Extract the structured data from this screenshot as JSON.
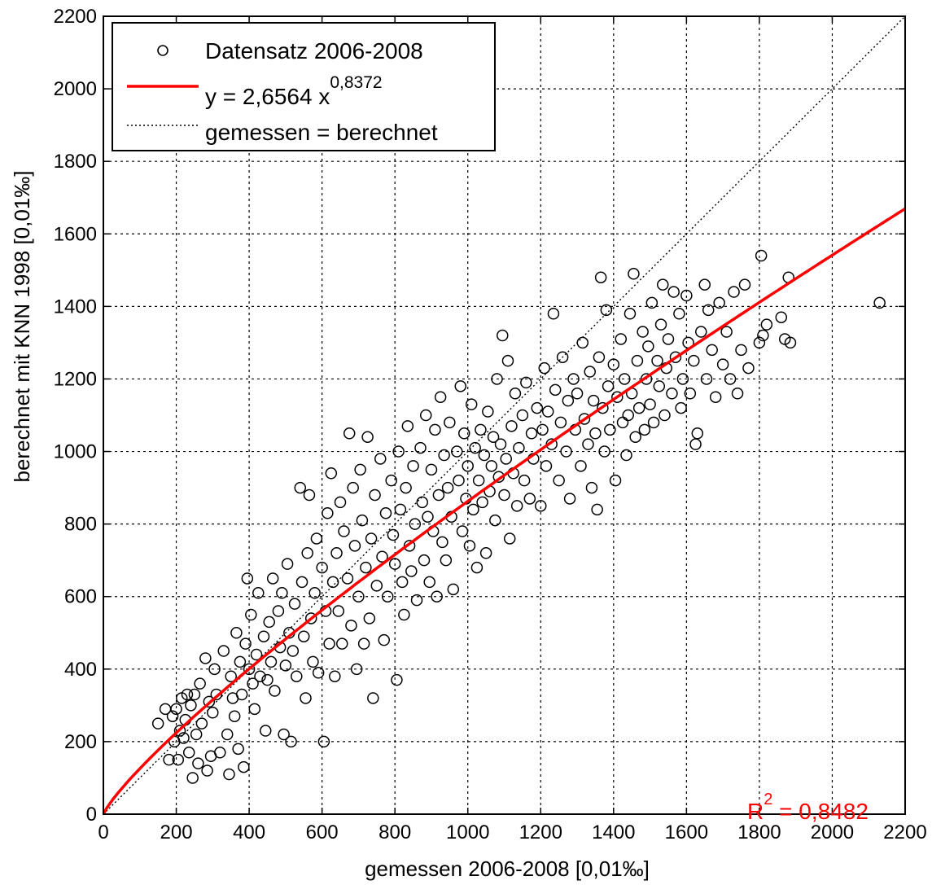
{
  "chart_data": {
    "type": "scatter",
    "xlabel": "gemessen 2006-2008 [0,01‰]",
    "ylabel": "berechnet mit KNN 1998 [0,01‰]",
    "xlim": [
      0,
      2200
    ],
    "ylim": [
      0,
      2200
    ],
    "xticks": [
      "0",
      "200",
      "400",
      "600",
      "800",
      "1000",
      "1200",
      "1400",
      "1600",
      "1800",
      "2000",
      "2200"
    ],
    "yticks": [
      "0",
      "200",
      "400",
      "600",
      "800",
      "1000",
      "1200",
      "1400",
      "1600",
      "1800",
      "2000",
      "2200"
    ],
    "grid": true,
    "legend_position": "top-left",
    "legend": [
      {
        "label": "Datensatz 2006-2008",
        "marker": "circle",
        "color": "#000000"
      },
      {
        "label_base": "y = 2,6564 x",
        "label_exp": "0,8372",
        "style": "solid",
        "color": "#ff0000"
      },
      {
        "label": "gemessen = berechnet",
        "style": "dotted",
        "color": "#000000"
      }
    ],
    "fit": {
      "a": 2.6564,
      "b": 0.8372,
      "color": "#ff0000"
    },
    "r2": {
      "base": "R",
      "exp": "2",
      "value": " = 0,8482",
      "color": "#ff0000"
    },
    "series": [
      {
        "name": "Datensatz 2006-2008",
        "marker": "circle",
        "points": [
          [
            150,
            250
          ],
          [
            170,
            290
          ],
          [
            180,
            150
          ],
          [
            190,
            270
          ],
          [
            195,
            200
          ],
          [
            200,
            290
          ],
          [
            205,
            150
          ],
          [
            210,
            230
          ],
          [
            215,
            320
          ],
          [
            220,
            210
          ],
          [
            225,
            260
          ],
          [
            230,
            330
          ],
          [
            235,
            170
          ],
          [
            240,
            300
          ],
          [
            245,
            100
          ],
          [
            250,
            330
          ],
          [
            255,
            220
          ],
          [
            260,
            140
          ],
          [
            265,
            360
          ],
          [
            270,
            250
          ],
          [
            280,
            430
          ],
          [
            285,
            120
          ],
          [
            290,
            310
          ],
          [
            295,
            160
          ],
          [
            300,
            280
          ],
          [
            305,
            400
          ],
          [
            310,
            330
          ],
          [
            320,
            170
          ],
          [
            330,
            450
          ],
          [
            340,
            220
          ],
          [
            345,
            110
          ],
          [
            350,
            380
          ],
          [
            355,
            320
          ],
          [
            360,
            270
          ],
          [
            365,
            500
          ],
          [
            370,
            180
          ],
          [
            375,
            420
          ],
          [
            380,
            330
          ],
          [
            385,
            130
          ],
          [
            390,
            470
          ],
          [
            395,
            650
          ],
          [
            400,
            400
          ],
          [
            405,
            550
          ],
          [
            410,
            360
          ],
          [
            415,
            290
          ],
          [
            420,
            440
          ],
          [
            425,
            610
          ],
          [
            430,
            380
          ],
          [
            440,
            490
          ],
          [
            445,
            230
          ],
          [
            450,
            370
          ],
          [
            455,
            530
          ],
          [
            460,
            420
          ],
          [
            465,
            650
          ],
          [
            470,
            340
          ],
          [
            480,
            560
          ],
          [
            485,
            460
          ],
          [
            490,
            610
          ],
          [
            495,
            220
          ],
          [
            500,
            410
          ],
          [
            505,
            690
          ],
          [
            510,
            500
          ],
          [
            515,
            200
          ],
          [
            520,
            450
          ],
          [
            525,
            580
          ],
          [
            530,
            380
          ],
          [
            540,
            900
          ],
          [
            545,
            640
          ],
          [
            550,
            490
          ],
          [
            555,
            320
          ],
          [
            560,
            720
          ],
          [
            565,
            880
          ],
          [
            570,
            540
          ],
          [
            575,
            420
          ],
          [
            580,
            610
          ],
          [
            585,
            760
          ],
          [
            590,
            390
          ],
          [
            600,
            680
          ],
          [
            605,
            200
          ],
          [
            610,
            560
          ],
          [
            615,
            830
          ],
          [
            620,
            470
          ],
          [
            625,
            940
          ],
          [
            630,
            640
          ],
          [
            635,
            380
          ],
          [
            640,
            720
          ],
          [
            645,
            560
          ],
          [
            650,
            860
          ],
          [
            655,
            470
          ],
          [
            660,
            780
          ],
          [
            670,
            650
          ],
          [
            675,
            1050
          ],
          [
            680,
            520
          ],
          [
            685,
            900
          ],
          [
            690,
            740
          ],
          [
            695,
            400
          ],
          [
            700,
            600
          ],
          [
            705,
            950
          ],
          [
            710,
            810
          ],
          [
            715,
            470
          ],
          [
            720,
            680
          ],
          [
            725,
            1040
          ],
          [
            730,
            540
          ],
          [
            735,
            760
          ],
          [
            740,
            320
          ],
          [
            745,
            880
          ],
          [
            750,
            630
          ],
          [
            760,
            980
          ],
          [
            765,
            710
          ],
          [
            770,
            480
          ],
          [
            775,
            830
          ],
          [
            780,
            600
          ],
          [
            790,
            920
          ],
          [
            795,
            770
          ],
          [
            800,
            690
          ],
          [
            805,
            370
          ],
          [
            810,
            1000
          ],
          [
            815,
            840
          ],
          [
            820,
            640
          ],
          [
            825,
            550
          ],
          [
            830,
            900
          ],
          [
            835,
            1070
          ],
          [
            840,
            740
          ],
          [
            845,
            670
          ],
          [
            850,
            960
          ],
          [
            855,
            800
          ],
          [
            860,
            590
          ],
          [
            870,
            1010
          ],
          [
            875,
            860
          ],
          [
            880,
            700
          ],
          [
            885,
            1100
          ],
          [
            890,
            820
          ],
          [
            895,
            640
          ],
          [
            900,
            950
          ],
          [
            905,
            780
          ],
          [
            910,
            1060
          ],
          [
            915,
            600
          ],
          [
            920,
            880
          ],
          [
            925,
            1150
          ],
          [
            930,
            750
          ],
          [
            935,
            990
          ],
          [
            940,
            700
          ],
          [
            945,
            900
          ],
          [
            950,
            1080
          ],
          [
            955,
            820
          ],
          [
            960,
            620
          ],
          [
            970,
            1000
          ],
          [
            975,
            920
          ],
          [
            980,
            1180
          ],
          [
            985,
            780
          ],
          [
            990,
            1050
          ],
          [
            995,
            870
          ],
          [
            1000,
            960
          ],
          [
            1005,
            740
          ],
          [
            1010,
            1130
          ],
          [
            1015,
            840
          ],
          [
            1020,
            1010
          ],
          [
            1025,
            680
          ],
          [
            1030,
            920
          ],
          [
            1035,
            1060
          ],
          [
            1040,
            860
          ],
          [
            1045,
            990
          ],
          [
            1050,
            720
          ],
          [
            1055,
            1110
          ],
          [
            1060,
            890
          ],
          [
            1065,
            960
          ],
          [
            1070,
            1040
          ],
          [
            1075,
            810
          ],
          [
            1080,
            1200
          ],
          [
            1085,
            930
          ],
          [
            1090,
            1020
          ],
          [
            1095,
            1320
          ],
          [
            1100,
            880
          ],
          [
            1105,
            980
          ],
          [
            1110,
            1250
          ],
          [
            1115,
            760
          ],
          [
            1120,
            1070
          ],
          [
            1125,
            940
          ],
          [
            1130,
            1160
          ],
          [
            1135,
            850
          ],
          [
            1140,
            1010
          ],
          [
            1150,
            1100
          ],
          [
            1155,
            920
          ],
          [
            1160,
            1190
          ],
          [
            1170,
            870
          ],
          [
            1175,
            1050
          ],
          [
            1180,
            980
          ],
          [
            1190,
            1120
          ],
          [
            1200,
            850
          ],
          [
            1205,
            1060
          ],
          [
            1210,
            1230
          ],
          [
            1215,
            960
          ],
          [
            1220,
            1110
          ],
          [
            1230,
            1020
          ],
          [
            1235,
            1380
          ],
          [
            1240,
            1170
          ],
          [
            1250,
            920
          ],
          [
            1255,
            1080
          ],
          [
            1260,
            1260
          ],
          [
            1270,
            1000
          ],
          [
            1275,
            1140
          ],
          [
            1280,
            870
          ],
          [
            1290,
            1200
          ],
          [
            1295,
            1060
          ],
          [
            1300,
            1160
          ],
          [
            1310,
            960
          ],
          [
            1315,
            1300
          ],
          [
            1320,
            1090
          ],
          [
            1330,
            1020
          ],
          [
            1335,
            1220
          ],
          [
            1340,
            900
          ],
          [
            1345,
            1140
          ],
          [
            1350,
            1050
          ],
          [
            1355,
            840
          ],
          [
            1360,
            1260
          ],
          [
            1365,
            1480
          ],
          [
            1370,
            1120
          ],
          [
            1375,
            1000
          ],
          [
            1380,
            1390
          ],
          [
            1385,
            1180
          ],
          [
            1390,
            1060
          ],
          [
            1400,
            1240
          ],
          [
            1405,
            920
          ],
          [
            1410,
            1150
          ],
          [
            1420,
            1310
          ],
          [
            1425,
            1080
          ],
          [
            1430,
            1200
          ],
          [
            1435,
            990
          ],
          [
            1440,
            1100
          ],
          [
            1445,
            1380
          ],
          [
            1450,
            1160
          ],
          [
            1455,
            1490
          ],
          [
            1460,
            1040
          ],
          [
            1465,
            1250
          ],
          [
            1470,
            1120
          ],
          [
            1480,
            1330
          ],
          [
            1485,
            1060
          ],
          [
            1490,
            1200
          ],
          [
            1495,
            1290
          ],
          [
            1500,
            1130
          ],
          [
            1505,
            1410
          ],
          [
            1510,
            1080
          ],
          [
            1520,
            1250
          ],
          [
            1525,
            1180
          ],
          [
            1530,
            1350
          ],
          [
            1535,
            1460
          ],
          [
            1540,
            1100
          ],
          [
            1545,
            1230
          ],
          [
            1550,
            1310
          ],
          [
            1560,
            1160
          ],
          [
            1565,
            1440
          ],
          [
            1570,
            1260
          ],
          [
            1580,
            1380
          ],
          [
            1585,
            1120
          ],
          [
            1590,
            1200
          ],
          [
            1600,
            1430
          ],
          [
            1605,
            1300
          ],
          [
            1610,
            1160
          ],
          [
            1620,
            1250
          ],
          [
            1625,
            1020
          ],
          [
            1630,
            1050
          ],
          [
            1640,
            1330
          ],
          [
            1650,
            1460
          ],
          [
            1655,
            1200
          ],
          [
            1660,
            1390
          ],
          [
            1670,
            1280
          ],
          [
            1680,
            1150
          ],
          [
            1690,
            1410
          ],
          [
            1700,
            1240
          ],
          [
            1710,
            1330
          ],
          [
            1720,
            1200
          ],
          [
            1730,
            1440
          ],
          [
            1740,
            1160
          ],
          [
            1750,
            1280
          ],
          [
            1760,
            1460
          ],
          [
            1770,
            1230
          ],
          [
            1800,
            1300
          ],
          [
            1805,
            1540
          ],
          [
            1810,
            1320
          ],
          [
            1820,
            1350
          ],
          [
            1860,
            1370
          ],
          [
            1870,
            1310
          ],
          [
            1880,
            1480
          ],
          [
            1885,
            1300
          ],
          [
            2130,
            1410
          ]
        ]
      }
    ]
  }
}
